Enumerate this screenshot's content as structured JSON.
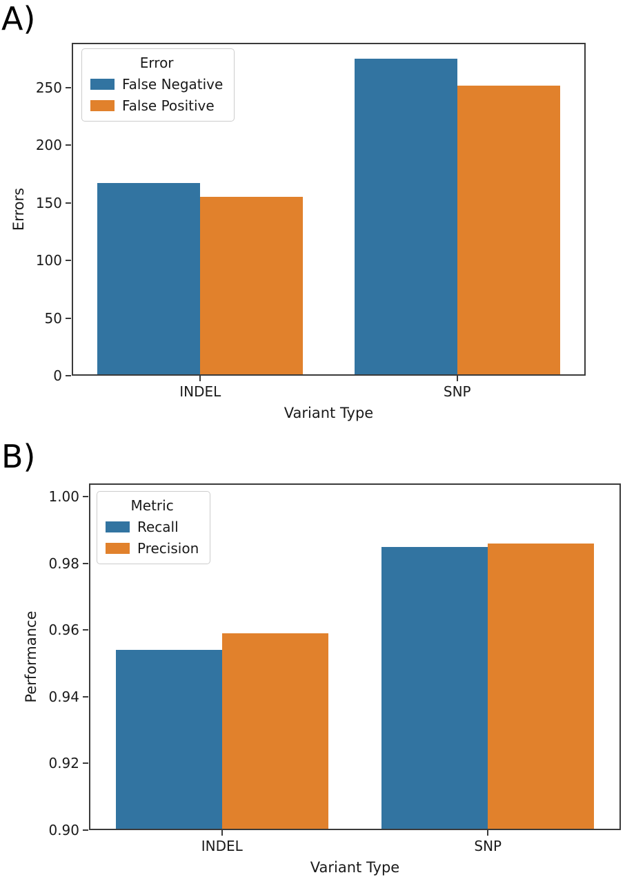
{
  "figure": {
    "panel_a_letter": "A)",
    "panel_b_letter": "B)"
  },
  "colors": {
    "series_blue": "#3274a1",
    "series_orange": "#e1812c",
    "spine": "#3a3a3a",
    "text": "#1a1a1a",
    "legend_border": "#cccccc"
  },
  "chart_data": [
    {
      "id": "A",
      "panel_label": "A)",
      "type": "bar",
      "categories": [
        "INDEL",
        "SNP"
      ],
      "series": [
        {
          "name": "False Negative",
          "color": "#3274a1",
          "values": [
            167,
            275
          ]
        },
        {
          "name": "False Positive",
          "color": "#e1812c",
          "values": [
            155,
            252
          ]
        }
      ],
      "legend_title": "Error",
      "legend_position": "upper left",
      "xlabel": "Variant Type",
      "ylabel": "Errors",
      "ylim": [
        0,
        289
      ],
      "yticks": [
        0,
        50,
        100,
        150,
        200,
        250
      ],
      "ytick_decimals": 0,
      "grid": false
    },
    {
      "id": "B",
      "panel_label": "B)",
      "type": "bar",
      "categories": [
        "INDEL",
        "SNP"
      ],
      "series": [
        {
          "name": "Recall",
          "color": "#3274a1",
          "values": [
            0.954,
            0.985
          ]
        },
        {
          "name": "Precision",
          "color": "#e1812c",
          "values": [
            0.959,
            0.986
          ]
        }
      ],
      "legend_title": "Metric",
      "legend_position": "upper left",
      "xlabel": "Variant Type",
      "ylabel": "Performance",
      "ylim": [
        0.9,
        1.004
      ],
      "yticks": [
        0.9,
        0.92,
        0.94,
        0.96,
        0.98,
        1.0
      ],
      "ytick_decimals": 2,
      "grid": false
    }
  ]
}
